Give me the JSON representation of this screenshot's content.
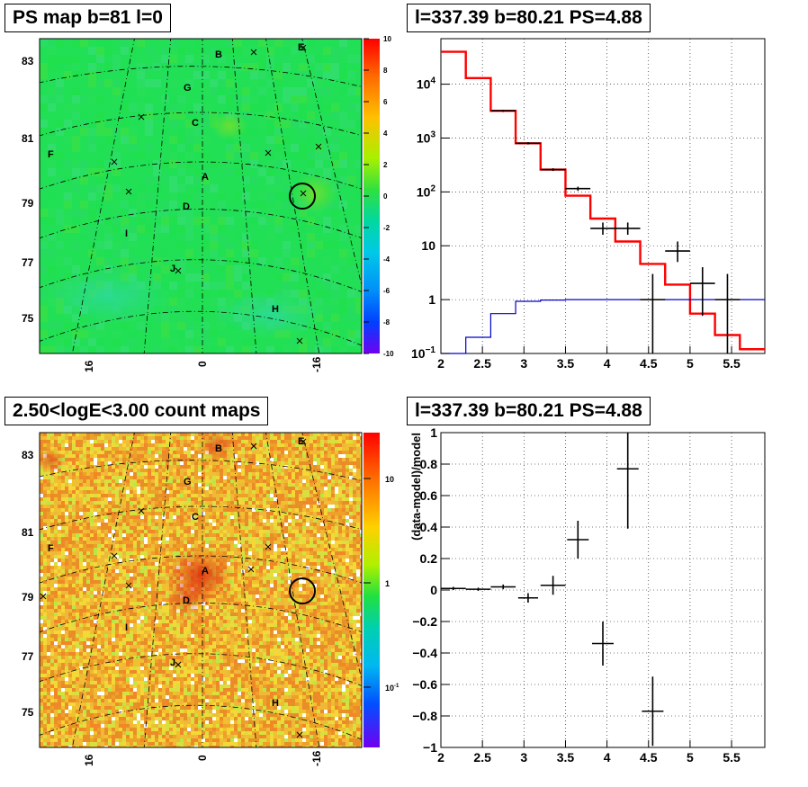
{
  "panels": {
    "ps_map": {
      "title": "PS map b=81 l=0"
    },
    "spectrum": {
      "title": "l=337.39 b=80.21 PS=4.88"
    },
    "count_map": {
      "title": "2.50<logE<3.00 count maps"
    },
    "residual": {
      "title": "l=337.39 b=80.21 PS=4.88"
    }
  },
  "chart_data": [
    {
      "type": "heatmap",
      "panel": "ps_map",
      "title": "PS map b=81 l=0",
      "y_ticks": [
        "83",
        "81",
        "79",
        "77",
        "75"
      ],
      "x_ticks": [
        "16",
        "0",
        "-16"
      ],
      "colorbar_ticks": [
        "10",
        "8",
        "6",
        "4",
        "2",
        "0",
        "-2",
        "-4",
        "-6",
        "-8",
        "-10"
      ],
      "colorbar_range": [
        -10,
        10
      ],
      "source_labels": [
        "B",
        "E",
        "G",
        "C",
        "F",
        "A",
        "D",
        "I",
        "J",
        "H"
      ],
      "marked_source": "circle",
      "field_level": 0,
      "colors": {
        "field": "#22e055",
        "field_dim": "#34d878",
        "spot": "#60e040"
      }
    },
    {
      "type": "line",
      "panel": "spectrum",
      "title": "l=337.39 b=80.21 PS=4.88",
      "xlim": [
        2,
        5.9
      ],
      "ylim": [
        0.1,
        70000
      ],
      "y_scale": "log",
      "grid": true,
      "x_ticks": [
        "2",
        "2.5",
        "3",
        "3.5",
        "4",
        "4.5",
        "5",
        "5.5"
      ],
      "y_ticks": [
        {
          "base": "10",
          "exp": "4",
          "v": 10000
        },
        {
          "base": "10",
          "exp": "3",
          "v": 1000
        },
        {
          "base": "10",
          "exp": "2",
          "v": 100
        },
        {
          "base": "10",
          "exp": "",
          "v": 10
        },
        {
          "base": "1",
          "exp": "",
          "v": 1
        },
        {
          "base": "10",
          "exp": "−1",
          "v": 0.1
        }
      ],
      "series": [
        {
          "color": "#ff0000",
          "edges": [
            2.0,
            2.3,
            2.6,
            2.9,
            3.2,
            3.5,
            3.8,
            4.1,
            4.4,
            4.7,
            5.0,
            5.3,
            5.6,
            5.9
          ],
          "values": [
            40000,
            13000,
            3200,
            800,
            260,
            85,
            32,
            12,
            4.6,
            1.9,
            0.55,
            0.22,
            0.12
          ]
        },
        {
          "color": "#0000cc",
          "edges": [
            2.0,
            2.3,
            2.6,
            2.9,
            3.2,
            3.5,
            3.8,
            4.1,
            4.4,
            4.7,
            5.0,
            5.3,
            5.6,
            5.9
          ],
          "values": [
            0.05,
            0.2,
            0.55,
            0.93,
            0.98,
            1.0,
            1.0,
            1.0,
            1.0,
            1.0,
            1.0,
            1.0,
            1.0
          ]
        }
      ],
      "points": [
        {
          "x": 2.75,
          "y": 3200,
          "xerr": 0.15,
          "ylo": 3050,
          "yhi": 3350
        },
        {
          "x": 3.05,
          "y": 800,
          "xerr": 0.15,
          "ylo": 760,
          "yhi": 840
        },
        {
          "x": 3.35,
          "y": 260,
          "xerr": 0.15,
          "ylo": 245,
          "yhi": 275
        },
        {
          "x": 3.65,
          "y": 115,
          "xerr": 0.15,
          "ylo": 105,
          "yhi": 125
        },
        {
          "x": 3.95,
          "y": 21,
          "xerr": 0.15,
          "ylo": 16,
          "yhi": 27
        },
        {
          "x": 4.25,
          "y": 21,
          "xerr": 0.15,
          "ylo": 16,
          "yhi": 27
        },
        {
          "x": 4.55,
          "y": 1,
          "xerr": 0.15,
          "ylo": 0.1,
          "yhi": 3
        },
        {
          "x": 4.85,
          "y": 8,
          "xerr": 0.15,
          "ylo": 5,
          "yhi": 12
        },
        {
          "x": 5.15,
          "y": 2,
          "xerr": 0.15,
          "ylo": 0.5,
          "yhi": 4
        },
        {
          "x": 5.45,
          "y": 1,
          "xerr": 0.15,
          "ylo": 0.1,
          "yhi": 3
        }
      ]
    },
    {
      "type": "heatmap",
      "panel": "count_map",
      "title": "2.50<logE<3.00 count maps",
      "y_ticks": [
        "83",
        "81",
        "79",
        "77",
        "75"
      ],
      "x_ticks": [
        "16",
        "0",
        "-16"
      ],
      "colorbar_ticks": [
        {
          "base": "10",
          "exp": ""
        },
        {
          "base": "1",
          "exp": ""
        },
        {
          "base": "10",
          "exp": "-1"
        }
      ],
      "colorbar_scale": "log",
      "source_labels": [
        "B",
        "E",
        "G",
        "C",
        "F",
        "A",
        "D",
        "I",
        "J",
        "H"
      ],
      "marked_source": "circle",
      "colors": {
        "base": "#f0b030",
        "hot": "#e05020",
        "cool": "#f0e040"
      }
    },
    {
      "type": "scatter",
      "panel": "residual",
      "title": "l=337.39 b=80.21 PS=4.88",
      "ylabel": "(data-model)/model",
      "xlim": [
        2,
        5.9
      ],
      "ylim": [
        -1,
        1
      ],
      "grid": true,
      "x_ticks": [
        "2",
        "2.5",
        "3",
        "3.5",
        "4",
        "4.5",
        "5",
        "5.5"
      ],
      "y_ticks": [
        "1",
        "0.8",
        "0.6",
        "0.4",
        "0.2",
        "0",
        "-0.2",
        "-0.4",
        "-0.6",
        "-0.8",
        "-1"
      ],
      "points": [
        {
          "x": 2.15,
          "y": 0.01,
          "xerr": 0.15,
          "yerr": 0.01
        },
        {
          "x": 2.45,
          "y": 0.005,
          "xerr": 0.15,
          "yerr": 0.01
        },
        {
          "x": 2.75,
          "y": 0.02,
          "xerr": 0.15,
          "yerr": 0.015
        },
        {
          "x": 3.05,
          "y": -0.05,
          "xerr": 0.12,
          "yerr": 0.03
        },
        {
          "x": 3.35,
          "y": 0.03,
          "xerr": 0.15,
          "yerr": 0.06
        },
        {
          "x": 3.65,
          "y": 0.32,
          "xerr": 0.13,
          "yerr": 0.12
        },
        {
          "x": 3.95,
          "y": -0.34,
          "xerr": 0.13,
          "yerr": 0.14
        },
        {
          "x": 4.25,
          "y": 0.77,
          "xerr": 0.13,
          "yerr": 0.38
        },
        {
          "x": 4.55,
          "y": -0.77,
          "xerr": 0.13,
          "yerr": 0.22
        }
      ]
    }
  ]
}
